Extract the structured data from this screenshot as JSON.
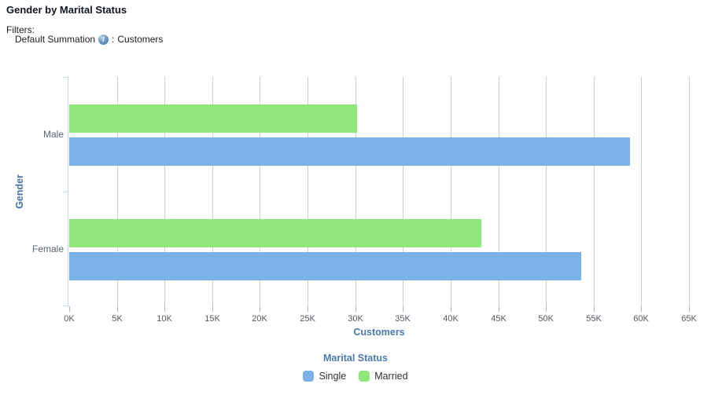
{
  "header": {
    "title": "Gender by Marital Status",
    "filters_label": "Filters:",
    "filter_item": {
      "name": "Default Summation",
      "info_icon_glyph": "i",
      "separator": ":",
      "value": "Customers"
    }
  },
  "chart_data": {
    "type": "bar",
    "orientation": "horizontal",
    "categories": [
      "Male",
      "Female"
    ],
    "series": [
      {
        "name": "Single",
        "color": "#7ab2e8",
        "values": [
          58800,
          53700
        ]
      },
      {
        "name": "Married",
        "color": "#90e87d",
        "values": [
          30200,
          43200
        ]
      }
    ],
    "xlabel": "Customers",
    "ylabel": "Gender",
    "xlim": [
      0,
      65000
    ],
    "x_tick_step": 5000,
    "x_tick_labels": [
      "0K",
      "5K",
      "10K",
      "15K",
      "20K",
      "25K",
      "30K",
      "35K",
      "40K",
      "45K",
      "50K",
      "55K",
      "60K",
      "65K"
    ],
    "grid": true,
    "legend_title": "Marital Status",
    "legend_position": "bottom",
    "legend_entries": [
      "Single",
      "Married"
    ]
  },
  "style_colors": {
    "single_bar": "#7ab2e8",
    "married_bar": "#90e87d",
    "axis_title_text": "#4a7ab2",
    "gridline": "#cfcfcf",
    "y_axis_line": "#c6d7e7",
    "tick_label_text": "#555a61",
    "category_label_text": "#5b6470"
  }
}
